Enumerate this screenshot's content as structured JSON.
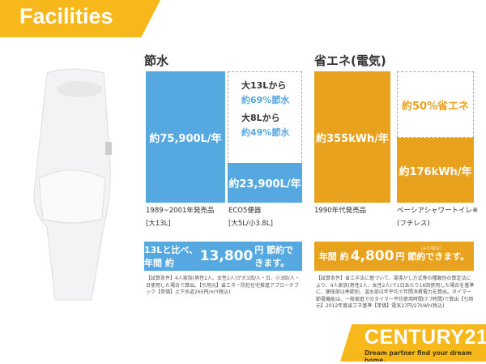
{
  "header": {
    "title": "Facilities"
  },
  "water": {
    "title": "節水",
    "old_value": "約75,900L/年",
    "new_value": "約23,900L/年",
    "saving1_from": "大13Lから",
    "saving1": "約69%節水",
    "saving2_from": "大8Lから",
    "saving2": "約49%節水",
    "old_label1": "1989~2001年発売品",
    "old_label2": "[大13L]",
    "new_label1": "ECO5便器",
    "new_label2": "[大5L/小3.8L]",
    "banner_pre": "13Lと比べ、年間 約",
    "banner_amount": "13,800",
    "banner_post": "円 節約できます。",
    "note": "【試算条件】4人家族(男性2人、女性2人)が大1回/人・日、小3回/人・日使用した場合で算出。【引用元】省エネ・防犯住宅推進アプローチブック【単価】上下水道265円/m³(税込)",
    "color": "#56a9e0"
  },
  "energy": {
    "title": "省エネ(電気)",
    "old_value": "約355kWh/年",
    "new_value": "約176kWh/年",
    "saving": "約50%省エネ",
    "old_label1": "1990年代発売品",
    "new_label1": "ベーシアシャワートイレ※",
    "new_label2": "(フチレス)",
    "banner_small": "(※の場合)",
    "banner_pre": "年間 約",
    "banner_amount": "4,800",
    "banner_post": "円 節約できます。",
    "note": "【試算条件】省エネ法に基づいて、湯沸かし方式等の種類別の算定法により、4人家族(男性2人、女性2人)で1日あたり16回使用した場合を基準に、便座部は季節別、温水部は年平均で年間消費電力を算出。タイマー節電機能は、一般家庭でのタイマー平均使用時間(7.7時間)で算出【引用元】2012年度省エネ基準【単価】電気27円/27kWh(税込)",
    "color": "#e9a21e"
  },
  "logo": {
    "name": "CENTURY21",
    "tagline": "Dream partner find your dream home."
  }
}
